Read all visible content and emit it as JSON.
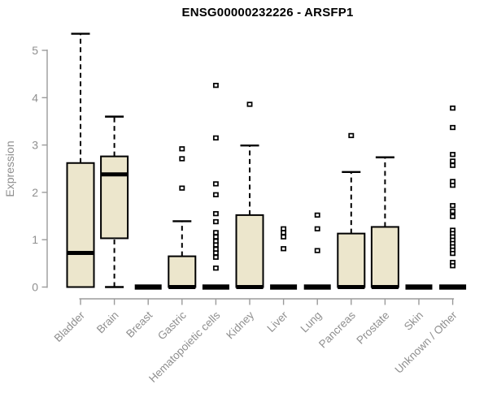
{
  "chart_data": {
    "type": "boxplot",
    "title": "ENSG00000232226 - ARSFP1",
    "xlabel": "",
    "ylabel": "Expression",
    "ylim": [
      0,
      5.4
    ],
    "yticks": [
      0,
      1,
      2,
      3,
      4,
      5
    ],
    "grid": false,
    "legend": false,
    "categories": [
      "Bladder",
      "Brain",
      "Breast",
      "Gastric",
      "Hematopoietic cells",
      "Kidney",
      "Liver",
      "Lung",
      "Pancreas",
      "Prostate",
      "Skin",
      "Unknown / Other"
    ],
    "series": [
      {
        "category": "Bladder",
        "whisker_low": 0,
        "q1": 0,
        "median": 0.72,
        "q3": 2.62,
        "whisker_high": 5.35,
        "outliers": []
      },
      {
        "category": "Brain",
        "whisker_low": 0,
        "q1": 1.03,
        "median": 2.38,
        "q3": 2.76,
        "whisker_high": 3.6,
        "outliers": []
      },
      {
        "category": "Breast",
        "whisker_low": 0,
        "q1": 0,
        "median": 0,
        "q3": 0,
        "whisker_high": 0,
        "outliers": []
      },
      {
        "category": "Gastric",
        "whisker_low": 0,
        "q1": 0,
        "median": 0,
        "q3": 0.65,
        "whisker_high": 1.39,
        "outliers": [
          2.92,
          2.71,
          2.09
        ]
      },
      {
        "category": "Hematopoietic cells",
        "whisker_low": 0,
        "q1": 0,
        "median": 0,
        "q3": 0,
        "whisker_high": 0,
        "outliers": [
          4.26,
          3.15,
          2.18,
          1.95,
          1.55,
          1.38,
          1.15,
          1.06,
          0.97,
          0.89,
          0.8,
          0.72,
          0.63,
          0.4
        ]
      },
      {
        "category": "Kidney",
        "whisker_low": 0,
        "q1": 0,
        "median": 0,
        "q3": 1.52,
        "whisker_high": 2.99,
        "outliers": [
          3.86
        ]
      },
      {
        "category": "Liver",
        "whisker_low": 0,
        "q1": 0,
        "median": 0,
        "q3": 0,
        "whisker_high": 0,
        "outliers": [
          1.23,
          1.15,
          1.06,
          0.81
        ]
      },
      {
        "category": "Lung",
        "whisker_low": 0,
        "q1": 0,
        "median": 0,
        "q3": 0,
        "whisker_high": 0,
        "outliers": [
          1.52,
          1.23,
          0.77
        ]
      },
      {
        "category": "Pancreas",
        "whisker_low": 0,
        "q1": 0,
        "median": 0,
        "q3": 1.13,
        "whisker_high": 2.43,
        "outliers": [
          3.2
        ]
      },
      {
        "category": "Prostate",
        "whisker_low": 0,
        "q1": 0,
        "median": 0,
        "q3": 1.27,
        "whisker_high": 2.74,
        "outliers": []
      },
      {
        "category": "Skin",
        "whisker_low": 0,
        "q1": 0,
        "median": 0,
        "q3": 0,
        "whisker_high": 0,
        "outliers": []
      },
      {
        "category": "Unknown / Other",
        "whisker_low": 0,
        "q1": 0,
        "median": 0,
        "q3": 0,
        "whisker_high": 0,
        "outliers": [
          3.78,
          3.37,
          2.8,
          2.66,
          2.57,
          2.23,
          2.15,
          1.72,
          1.6,
          1.49,
          1.2,
          1.13,
          1.06,
          0.99,
          0.92,
          0.85,
          0.78,
          0.71,
          0.52,
          0.45
        ]
      }
    ],
    "style": {
      "box_fill": "#ece6cc",
      "box_border": "#000000",
      "median_color": "#000000",
      "whisker_color": "#000000",
      "axis_color": "#9b9b9b",
      "tick_label_color": "#8f8f8f",
      "title_color": "#000000",
      "outlier_marker": "open-square"
    }
  }
}
